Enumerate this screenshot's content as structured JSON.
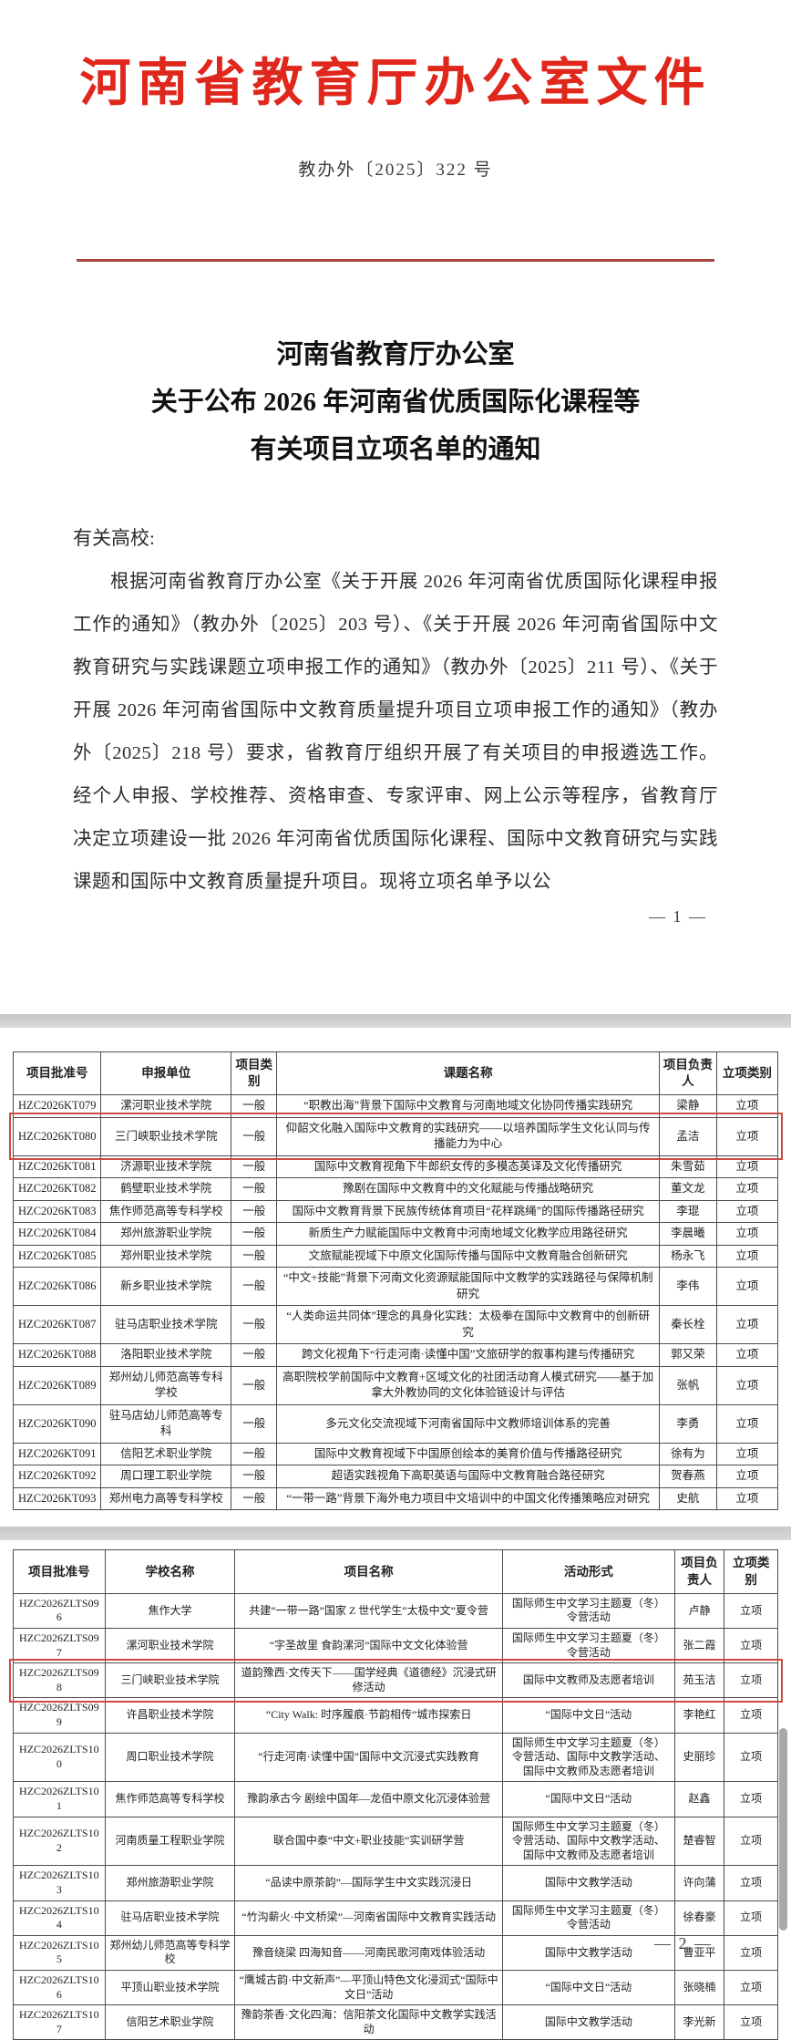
{
  "document": {
    "header_title": "河南省教育厅办公室文件",
    "doc_number": "教办外〔2025〕322 号",
    "title_line1": "河南省教育厅办公室",
    "title_line2": "关于公布 2026 年河南省优质国际化课程等",
    "title_line3": "有关项目立项名单的通知",
    "salutation": "有关高校:",
    "body_paragraph": "根据河南省教育厅办公室《关于开展 2026 年河南省优质国际化课程申报工作的通知》（教办外〔2025〕203 号）、《关于开展 2026 年河南省国际中文教育研究与实践课题立项申报工作的通知》（教办外〔2025〕211 号）、《关于开展 2026 年河南省国际中文教育质量提升项目立项申报工作的通知》（教办外〔2025〕218 号）要求，省教育厅组织开展了有关项目的申报遴选工作。经个人申报、学校推荐、资格审查、专家评审、网上公示等程序，省教育厅决定立项建设一批 2026 年河南省优质国际化课程、国际中文教育研究与实践课题和国际中文教育质量提升项目。现将立项名单予以公",
    "page_number_1": "— 1 —",
    "page_number_2": "— 2 —"
  },
  "colors": {
    "header_red": "#e0271c",
    "rule_red": "#a8453d",
    "highlight_red": "#cc4b44",
    "separator_gray": "#d3d3d3"
  },
  "table1": {
    "headers": [
      "项目批准号",
      "申报单位",
      "项目类别",
      "课题名称",
      "项目负责人",
      "立项类别"
    ],
    "highlight_row": 1,
    "rows": [
      [
        "HZC2026KT079",
        "漯河职业技术学院",
        "一般",
        "“职教出海”背景下国际中文教育与河南地域文化协同传播实践研究",
        "梁静",
        "立项"
      ],
      [
        "HZC2026KT080",
        "三门峡职业技术学院",
        "一般",
        "仰韶文化融入国际中文教育的实践研究——以培养国际学生文化认同与传播能力为中心",
        "孟洁",
        "立项"
      ],
      [
        "HZC2026KT081",
        "济源职业技术学院",
        "一般",
        "国际中文教育视角下牛郎织女传的多模态英译及文化传播研究",
        "朱雪茹",
        "立项"
      ],
      [
        "HZC2026KT082",
        "鹤壁职业技术学院",
        "一般",
        "豫剧在国际中文教育中的文化赋能与传播战略研究",
        "董文龙",
        "立项"
      ],
      [
        "HZC2026KT083",
        "焦作师范高等专科学校",
        "一般",
        "国际中文教育背景下民族传统体育项目“花样跳绳”的国际传播路径研究",
        "李琨",
        "立项"
      ],
      [
        "HZC2026KT084",
        "郑州旅游职业学院",
        "一般",
        "新质生产力赋能国际中文教育中河南地域文化教学应用路径研究",
        "李晨曦",
        "立项"
      ],
      [
        "HZC2026KT085",
        "郑州职业技术学院",
        "一般",
        "文旅赋能视域下中原文化国际传播与国际中文教育融合创新研究",
        "杨永飞",
        "立项"
      ],
      [
        "HZC2026KT086",
        "新乡职业技术学院",
        "一般",
        "“中文+技能”背景下河南文化资源赋能国际中文教学的实践路径与保障机制研究",
        "李伟",
        "立项"
      ],
      [
        "HZC2026KT087",
        "驻马店职业技术学院",
        "一般",
        "“人类命运共同体”理念的具身化实践：太极拳在国际中文教育中的创新研究",
        "秦长栓",
        "立项"
      ],
      [
        "HZC2026KT088",
        "洛阳职业技术学院",
        "一般",
        "跨文化视角下“行走河南·读懂中国”文旅研学的叙事构建与传播研究",
        "郭又荣",
        "立项"
      ],
      [
        "HZC2026KT089",
        "郑州幼儿师范高等专科学校",
        "一般",
        "高职院校学前国际中文教育+区域文化的社团活动育人模式研究——基于加拿大外教协同的文化体验链设计与评估",
        "张帆",
        "立项"
      ],
      [
        "HZC2026KT090",
        "驻马店幼儿师范高等专科",
        "一般",
        "多元文化交流视域下河南省国际中文教师培训体系的完善",
        "李勇",
        "立项"
      ],
      [
        "HZC2026KT091",
        "信阳艺术职业学院",
        "一般",
        "国际中文教育视域下中国原创绘本的美育价值与传播路径研究",
        "徐有为",
        "立项"
      ],
      [
        "HZC2026KT092",
        "周口理工职业学院",
        "一般",
        "超语实践视角下高职英语与国际中文教育融合路径研究",
        "贺春燕",
        "立项"
      ],
      [
        "HZC2026KT093",
        "郑州电力高等专科学校",
        "一般",
        "“一带一路”背景下海外电力项目中文培训中的中国文化传播策略应对研究",
        "史航",
        "立项"
      ]
    ]
  },
  "table2": {
    "headers": [
      "项目批准号",
      "学校名称",
      "项目名称",
      "活动形式",
      "项目负责人",
      "立项类别"
    ],
    "highlight_row": 2,
    "rows": [
      [
        "HZC2026ZLTS096",
        "焦作大学",
        "共建“一带一路”国家 Z 世代学生“太极中文”夏令营",
        "国际师生中文学习主题夏（冬）令营活动",
        "卢静",
        "立项"
      ],
      [
        "HZC2026ZLTS097",
        "漯河职业技术学院",
        "“字圣故里 食韵漯河”国际中文文化体验营",
        "国际师生中文学习主题夏（冬）令营活动",
        "张二霞",
        "立项"
      ],
      [
        "HZC2026ZLTS098",
        "三门峡职业技术学院",
        "道韵豫西·文传天下——国学经典《道德经》沉浸式研修活动",
        "国际中文教师及志愿者培训",
        "苑玉洁",
        "立项"
      ],
      [
        "HZC2026ZLTS099",
        "许昌职业技术学院",
        "“City Walk: 时序履痕·节韵相传”城市探索日",
        "“国际中文日”活动",
        "李艳红",
        "立项"
      ],
      [
        "HZC2026ZLTS100",
        "周口职业技术学院",
        "“行走河南·读懂中国”国际中文沉浸式实践教育",
        "国际师生中文学习主题夏（冬）令营活动、国际中文教学活动、国际中文教师及志愿者培训",
        "史丽珍",
        "立项"
      ],
      [
        "HZC2026ZLTS101",
        "焦作师范高等专科学校",
        "豫韵承古今 剧绘中国年—龙佰中原文化沉浸体验营",
        "“国际中文日”活动",
        "赵鑫",
        "立项"
      ],
      [
        "HZC2026ZLTS102",
        "河南质量工程职业学院",
        "联合国中泰“中文+职业技能”实训研学营",
        "国际师生中文学习主题夏（冬）令营活动、国际中文教学活动、国际中文教师及志愿者培训",
        "楚睿智",
        "立项"
      ],
      [
        "HZC2026ZLTS103",
        "郑州旅游职业学院",
        "“品读中原茶韵”—国际学生中文实践沉浸日",
        "国际中文教学活动",
        "许向蒲",
        "立项"
      ],
      [
        "HZC2026ZLTS104",
        "驻马店职业技术学院",
        "“竹沟薪火·中文桥梁”—河南省国际中文教育实践活动",
        "国际师生中文学习主题夏（冬）令营活动",
        "徐春豪",
        "立项"
      ],
      [
        "HZC2026ZLTS105",
        "郑州幼儿师范高等专科学校",
        "豫音绕梁 四海知音——河南民歌河南戏体验活动",
        "国际中文教学活动",
        "曹亚平",
        "立项"
      ],
      [
        "HZC2026ZLTS106",
        "平顶山职业技术学院",
        "“鹰城古韵·中文新声”—平顶山特色文化浸润式“国际中文日”活动",
        "“国际中文日”活动",
        "张晓楠",
        "立项"
      ],
      [
        "HZC2026ZLTS107",
        "信阳艺术职业学院",
        "豫韵茶香·文化四海：信阳茶文化国际中文教学实践活动",
        "国际中文教学活动",
        "李光新",
        "立项"
      ]
    ]
  }
}
